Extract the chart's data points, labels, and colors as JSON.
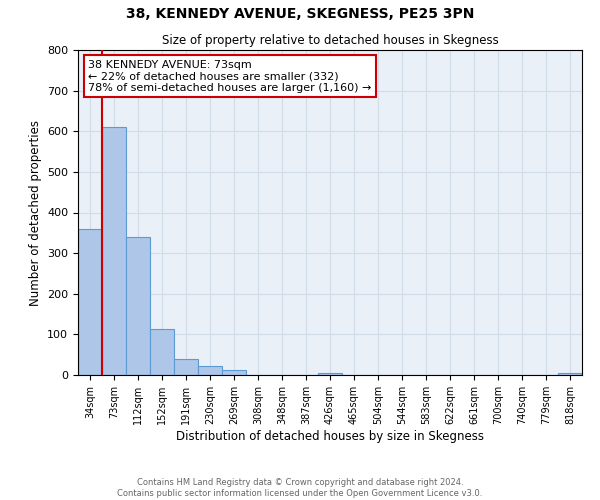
{
  "title": "38, KENNEDY AVENUE, SKEGNESS, PE25 3PN",
  "subtitle": "Size of property relative to detached houses in Skegness",
  "xlabel": "Distribution of detached houses by size in Skegness",
  "ylabel": "Number of detached properties",
  "bin_labels": [
    "34sqm",
    "73sqm",
    "112sqm",
    "152sqm",
    "191sqm",
    "230sqm",
    "269sqm",
    "308sqm",
    "348sqm",
    "387sqm",
    "426sqm",
    "465sqm",
    "504sqm",
    "544sqm",
    "583sqm",
    "622sqm",
    "661sqm",
    "700sqm",
    "740sqm",
    "779sqm",
    "818sqm"
  ],
  "bar_values": [
    360,
    610,
    340,
    113,
    40,
    22,
    13,
    0,
    0,
    0,
    5,
    0,
    0,
    0,
    0,
    0,
    0,
    0,
    0,
    0,
    5
  ],
  "bar_color": "#aec6e8",
  "bar_edge_color": "#5b9bd5",
  "ylim": [
    0,
    800
  ],
  "yticks": [
    0,
    100,
    200,
    300,
    400,
    500,
    600,
    700,
    800
  ],
  "property_line_x": 1,
  "annotation_title": "38 KENNEDY AVENUE: 73sqm",
  "annotation_line1": "← 22% of detached houses are smaller (332)",
  "annotation_line2": "78% of semi-detached houses are larger (1,160) →",
  "annotation_box_color": "#ffffff",
  "annotation_box_edge": "#cc0000",
  "property_line_color": "#cc0000",
  "grid_color": "#d0dce8",
  "background_color": "#eaf0f8",
  "footer_line1": "Contains HM Land Registry data © Crown copyright and database right 2024.",
  "footer_line2": "Contains public sector information licensed under the Open Government Licence v3.0."
}
